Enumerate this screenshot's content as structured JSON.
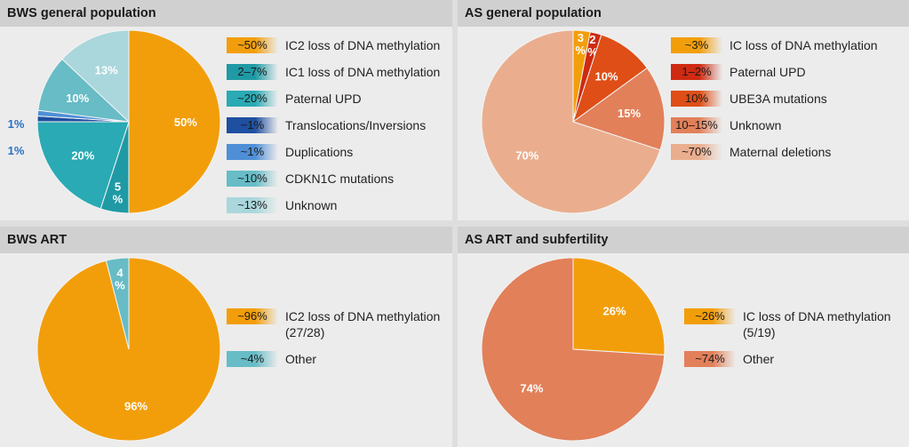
{
  "chart_data": [
    {
      "type": "pie",
      "title": "BWS general population",
      "slices": [
        {
          "label": "IC2 loss of DNA methylation",
          "legend_value": "~50%",
          "value": 50,
          "pie_label": "50%",
          "color": "#f29e0b"
        },
        {
          "label": "IC1 loss of DNA methylation",
          "legend_value": "2–7%",
          "value": 5,
          "pie_label": "5\n%",
          "color": "#1f9aa5"
        },
        {
          "label": "Paternal UPD",
          "legend_value": "~20%",
          "value": 20,
          "pie_label": "20%",
          "color": "#2aaab4"
        },
        {
          "label": "Translocations/Inversions",
          "legend_value": "~1%",
          "value": 1,
          "pie_label": "1%",
          "color": "#1e4fa0"
        },
        {
          "label": "Duplications",
          "legend_value": "~1%",
          "value": 1,
          "pie_label": "1%",
          "color": "#4f8fd6"
        },
        {
          "label": "CDKN1C mutations",
          "legend_value": "~10%",
          "value": 10,
          "pie_label": "10%",
          "color": "#67bcc6"
        },
        {
          "label": "Unknown",
          "legend_value": "~13%",
          "value": 13,
          "pie_label": "13%",
          "color": "#a9d7dc"
        }
      ]
    },
    {
      "type": "pie",
      "title": "AS general population",
      "slices": [
        {
          "label": "IC loss of DNA methylation",
          "legend_value": "~3%",
          "value": 3,
          "pie_label": "3\n%",
          "color": "#f29e0b"
        },
        {
          "label": "Paternal UPD",
          "legend_value": "1–2%",
          "value": 2,
          "pie_label": "2\n%",
          "color": "#cf2a12"
        },
        {
          "label": "UBE3A mutations",
          "legend_value": "10%",
          "value": 10,
          "pie_label": "10%",
          "color": "#de4e16"
        },
        {
          "label": "Unknown",
          "legend_value": "10–15%",
          "value": 15,
          "pie_label": "15%",
          "color": "#e2805a"
        },
        {
          "label": "Maternal deletions",
          "legend_value": "~70%",
          "value": 70,
          "pie_label": "70%",
          "color": "#eaae8e"
        }
      ]
    },
    {
      "type": "pie",
      "title": "BWS ART",
      "slices": [
        {
          "label": "IC2 loss of DNA methylation",
          "sublabel": "(27/28)",
          "legend_value": "~96%",
          "value": 96,
          "pie_label": "96%",
          "color": "#f29e0b"
        },
        {
          "label": "Other",
          "legend_value": "~4%",
          "value": 4,
          "pie_label": "4\n%",
          "color": "#67bcc6"
        }
      ]
    },
    {
      "type": "pie",
      "title": "AS ART and subfertility",
      "slices": [
        {
          "label": "IC loss of DNA methylation",
          "sublabel": "(5/19)",
          "legend_value": "~26%",
          "value": 26,
          "pie_label": "26%",
          "color": "#f29e0b"
        },
        {
          "label": "Other",
          "legend_value": "~74%",
          "value": 74,
          "pie_label": "74%",
          "color": "#e2805a"
        }
      ]
    }
  ]
}
